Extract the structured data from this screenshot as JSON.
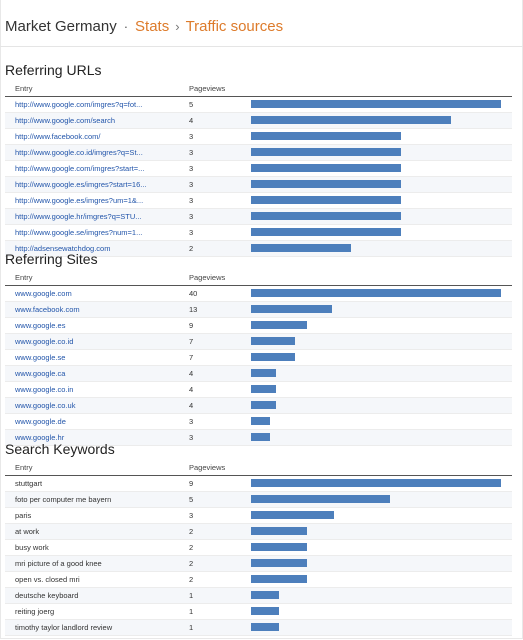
{
  "breadcrumb": {
    "root": "Market Germany",
    "separator": "·",
    "stats": "Stats",
    "arrow": "›",
    "current": "Traffic sources"
  },
  "colors": {
    "link_orange": "#dd7b2b",
    "bar_blue": "#4d7fbc",
    "link_blue": "#2255aa"
  },
  "sections": [
    {
      "title": "Referring URLs",
      "col_entry": "Entry",
      "col_pageviews": "Pageviews",
      "max": 5,
      "entry_style": "link",
      "rows": [
        {
          "entry": "http://www.google.com/imgres?q=fot...",
          "pageviews": 5
        },
        {
          "entry": "http://www.google.com/search",
          "pageviews": 4
        },
        {
          "entry": "http://www.facebook.com/",
          "pageviews": 3
        },
        {
          "entry": "http://www.google.co.id/imgres?q=St...",
          "pageviews": 3
        },
        {
          "entry": "http://www.google.com/imgres?start=...",
          "pageviews": 3
        },
        {
          "entry": "http://www.google.es/imgres?start=16...",
          "pageviews": 3
        },
        {
          "entry": "http://www.google.es/imgres?um=1&...",
          "pageviews": 3
        },
        {
          "entry": "http://www.google.hr/imgres?q=STU...",
          "pageviews": 3
        },
        {
          "entry": "http://www.google.se/imgres?num=1...",
          "pageviews": 3
        },
        {
          "entry": "http://adsensewatchdog.com",
          "pageviews": 2
        }
      ]
    },
    {
      "title": "Referring Sites",
      "col_entry": "Entry",
      "col_pageviews": "Pageviews",
      "max": 40,
      "entry_style": "link",
      "rows": [
        {
          "entry": "www.google.com",
          "pageviews": 40
        },
        {
          "entry": "www.facebook.com",
          "pageviews": 13
        },
        {
          "entry": "www.google.es",
          "pageviews": 9
        },
        {
          "entry": "www.google.co.id",
          "pageviews": 7
        },
        {
          "entry": "www.google.se",
          "pageviews": 7
        },
        {
          "entry": "www.google.ca",
          "pageviews": 4
        },
        {
          "entry": "www.google.co.in",
          "pageviews": 4
        },
        {
          "entry": "www.google.co.uk",
          "pageviews": 4
        },
        {
          "entry": "www.google.de",
          "pageviews": 3
        },
        {
          "entry": "www.google.hr",
          "pageviews": 3
        }
      ]
    },
    {
      "title": "Search Keywords",
      "col_entry": "Entry",
      "col_pageviews": "Pageviews",
      "max": 9,
      "entry_style": "plain",
      "rows": [
        {
          "entry": "stuttgart",
          "pageviews": 9
        },
        {
          "entry": "foto per computer me bayern",
          "pageviews": 5
        },
        {
          "entry": "paris",
          "pageviews": 3
        },
        {
          "entry": "at work",
          "pageviews": 2
        },
        {
          "entry": "busy work",
          "pageviews": 2
        },
        {
          "entry": "mri picture of a good knee",
          "pageviews": 2
        },
        {
          "entry": "open vs. closed mri",
          "pageviews": 2
        },
        {
          "entry": "deutsche keyboard",
          "pageviews": 1
        },
        {
          "entry": "reiting joerg",
          "pageviews": 1
        },
        {
          "entry": "timothy taylor landlord review",
          "pageviews": 1
        }
      ]
    }
  ]
}
